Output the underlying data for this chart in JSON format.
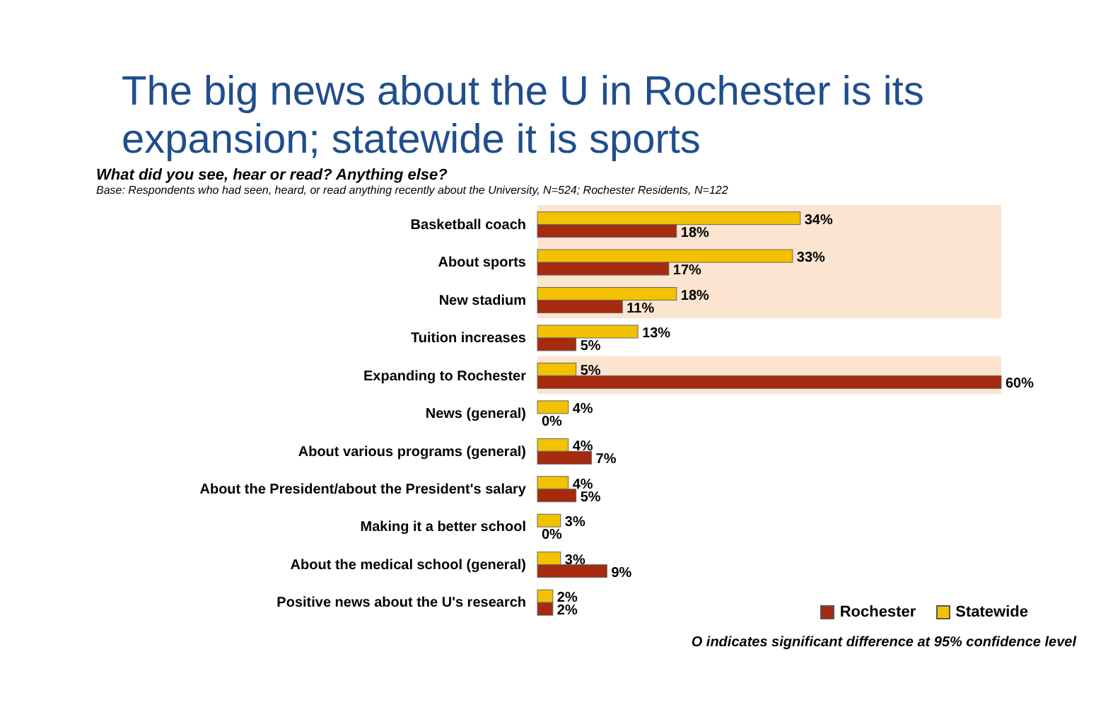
{
  "chart_data": {
    "type": "bar",
    "orientation": "horizontal",
    "title": "The big news about the U in Rochester is its expansion; statewide it is sports",
    "subtitle": "What did you see, hear or read?  Anything else?",
    "annotations": [
      "Base: Respondents who had seen, heard, or read anything recently about the University, N=524; Rochester Residents, N=122",
      "O indicates significant difference at 95% confidence level"
    ],
    "categories": [
      "Basketball coach",
      "About sports",
      "New stadium",
      "Tuition increases",
      "Expanding to Rochester",
      "News (general)",
      "About various programs (general)",
      "About the President/about the President's salary",
      "Making it a better school",
      "About the medical school (general)",
      "Positive news about the U's research"
    ],
    "series": [
      {
        "name": "Statewide",
        "color": "#f2c200",
        "values": [
          34,
          33,
          18,
          13,
          5,
          4,
          4,
          4,
          3,
          3,
          2
        ],
        "value_labels": [
          "34%",
          "33%",
          "18%",
          "13%",
          "5%",
          "4%",
          "4%",
          "4%",
          "3%",
          "3%",
          "2%"
        ]
      },
      {
        "name": "Rochester",
        "color": "#a52a0e",
        "values": [
          18,
          17,
          11,
          5,
          60,
          0,
          7,
          5,
          0,
          9,
          2
        ],
        "value_labels": [
          "18%",
          "17%",
          "11%",
          "5%",
          "60%",
          "0%",
          "7%",
          "5%",
          "0%",
          "9%",
          "2%"
        ]
      }
    ],
    "bands": [
      {
        "axis": "y",
        "from": "Basketball coach",
        "to": "New stadium",
        "color": "#fbe4d0"
      },
      {
        "axis": "y",
        "from": "Expanding to Rochester",
        "to": "Expanding to Rochester",
        "color": "#fbe4d0"
      }
    ],
    "legend": "bottom right"
  }
}
